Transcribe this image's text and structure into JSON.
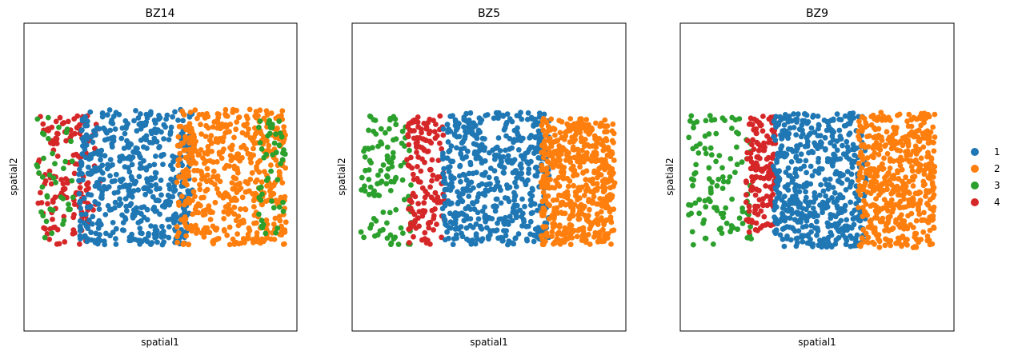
{
  "figure": {
    "legend": [
      {
        "label": "1",
        "color": "#1f77b4"
      },
      {
        "label": "2",
        "color": "#ff7f0e"
      },
      {
        "label": "3",
        "color": "#2ca02c"
      },
      {
        "label": "4",
        "color": "#d62728"
      }
    ]
  },
  "chart_data": [
    {
      "type": "scatter",
      "title": "BZ14",
      "xlabel": "spatial1",
      "ylabel": "spatial2",
      "grid": false,
      "ticks": "none",
      "legend": "right",
      "xlim": [
        0,
        1
      ],
      "ylim": [
        0,
        1
      ],
      "clusters": [
        {
          "name": "4",
          "x_range": [
            0.05,
            0.28
          ],
          "y_range": [
            0.28,
            0.7
          ],
          "density": "band"
        },
        {
          "name": "1",
          "x_range": [
            0.2,
            0.62
          ],
          "y_range": [
            0.28,
            0.72
          ],
          "density": "dense"
        },
        {
          "name": "2",
          "x_range": [
            0.56,
            0.96
          ],
          "y_range": [
            0.28,
            0.72
          ],
          "density": "dense"
        },
        {
          "name": "3",
          "x_range": [
            0.03,
            0.96
          ],
          "y_range": [
            0.28,
            0.7
          ],
          "density": "sparse-edges"
        }
      ]
    },
    {
      "type": "scatter",
      "title": "BZ5",
      "xlabel": "spatial1",
      "ylabel": "spatial2",
      "grid": false,
      "ticks": "none",
      "xlim": [
        0,
        1
      ],
      "ylim": [
        0,
        1
      ],
      "clusters": [
        {
          "name": "3",
          "x_range": [
            0.03,
            0.22
          ],
          "y_range": [
            0.28,
            0.7
          ],
          "density": "sparse"
        },
        {
          "name": "4",
          "x_range": [
            0.2,
            0.34
          ],
          "y_range": [
            0.28,
            0.7
          ],
          "density": "band"
        },
        {
          "name": "1",
          "x_range": [
            0.33,
            0.72
          ],
          "y_range": [
            0.28,
            0.71
          ],
          "density": "dense"
        },
        {
          "name": "2",
          "x_range": [
            0.69,
            0.96
          ],
          "y_range": [
            0.28,
            0.69
          ],
          "density": "dense"
        }
      ]
    },
    {
      "type": "scatter",
      "title": "BZ9",
      "xlabel": "spatial1",
      "ylabel": "spatial2",
      "grid": false,
      "ticks": "none",
      "xlim": [
        0,
        1
      ],
      "ylim": [
        0,
        1
      ],
      "clusters": [
        {
          "name": "3",
          "x_range": [
            0.03,
            0.26
          ],
          "y_range": [
            0.28,
            0.7
          ],
          "density": "sparse"
        },
        {
          "name": "4",
          "x_range": [
            0.24,
            0.35
          ],
          "y_range": [
            0.32,
            0.7
          ],
          "density": "band"
        },
        {
          "name": "1",
          "x_range": [
            0.34,
            0.68
          ],
          "y_range": [
            0.27,
            0.71
          ],
          "density": "dense"
        },
        {
          "name": "2",
          "x_range": [
            0.65,
            0.93
          ],
          "y_range": [
            0.27,
            0.71
          ],
          "density": "dense"
        }
      ]
    }
  ]
}
